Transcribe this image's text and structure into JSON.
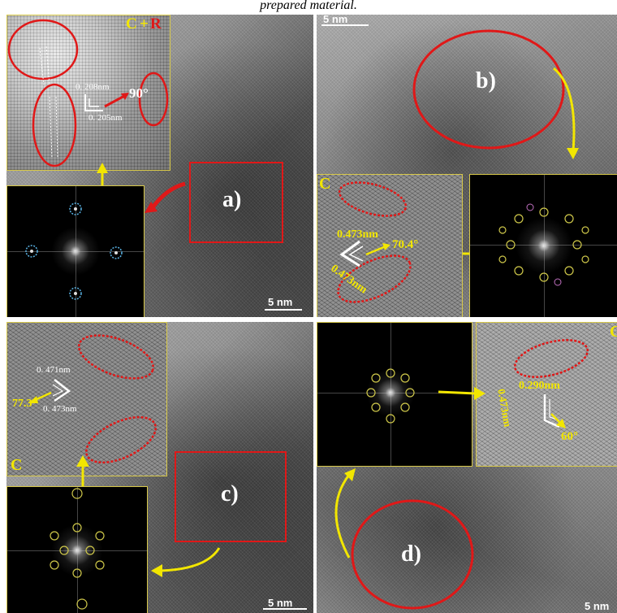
{
  "caption": "prepared material.",
  "panels": {
    "a": {
      "letter": "a)",
      "inset_tag_c": "C",
      "inset_tag_plus": "+",
      "inset_tag_r": "R",
      "d1": "0. 208nm",
      "d2": "0. 205nm",
      "angle": "90°",
      "scale": "5  nm"
    },
    "b": {
      "letter": "b)",
      "inset_tag": "C",
      "d1": "0.473nm",
      "d2": "0.473nm",
      "angle": "70.4°",
      "scale": "5 nm"
    },
    "c": {
      "letter": "c)",
      "inset_tag": "C",
      "d1": "0. 471nm",
      "d2": "0. 473nm",
      "angle": "77.3°",
      "scale": "5  nm"
    },
    "d": {
      "letter": "d)",
      "inset_tag": "C",
      "d1": "0.290nm",
      "d2": "0.473nm",
      "angle": "60°",
      "scale": "5  nm"
    }
  },
  "colors": {
    "circle": "#e01818",
    "arrow_yellow": "#f2e600",
    "fft_ring_blue": "#5ab4e6",
    "fft_ring_yellow": "#cfc84a",
    "inset_border": "#d8c94a"
  }
}
